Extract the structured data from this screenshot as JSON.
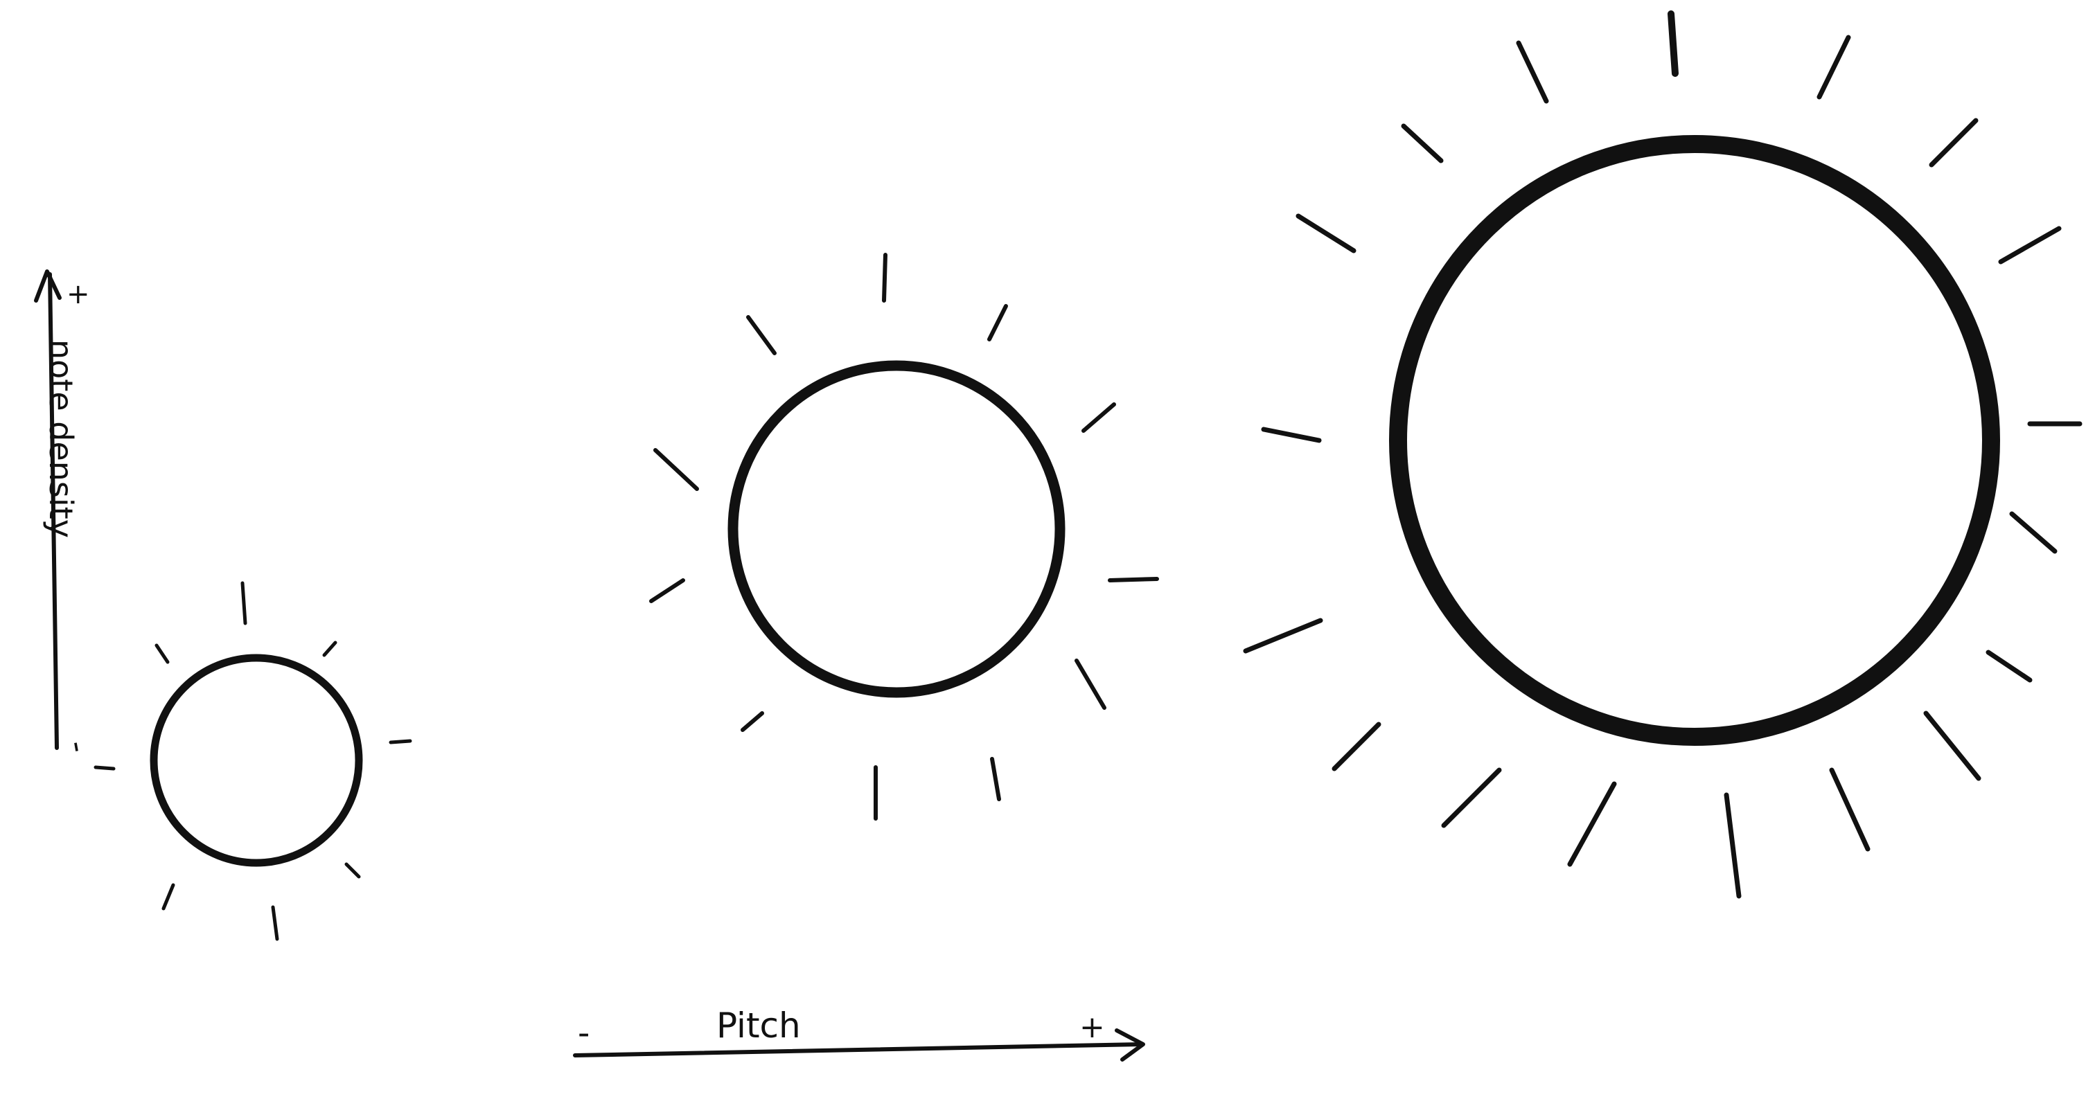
{
  "axes": {
    "vertical": {
      "label": "note density",
      "plus": "+",
      "minus": "-"
    },
    "horizontal": {
      "label": "Pitch",
      "plus": "+",
      "minus": "-"
    }
  },
  "colors": {
    "ink": "#111111",
    "background": "#ffffff"
  }
}
